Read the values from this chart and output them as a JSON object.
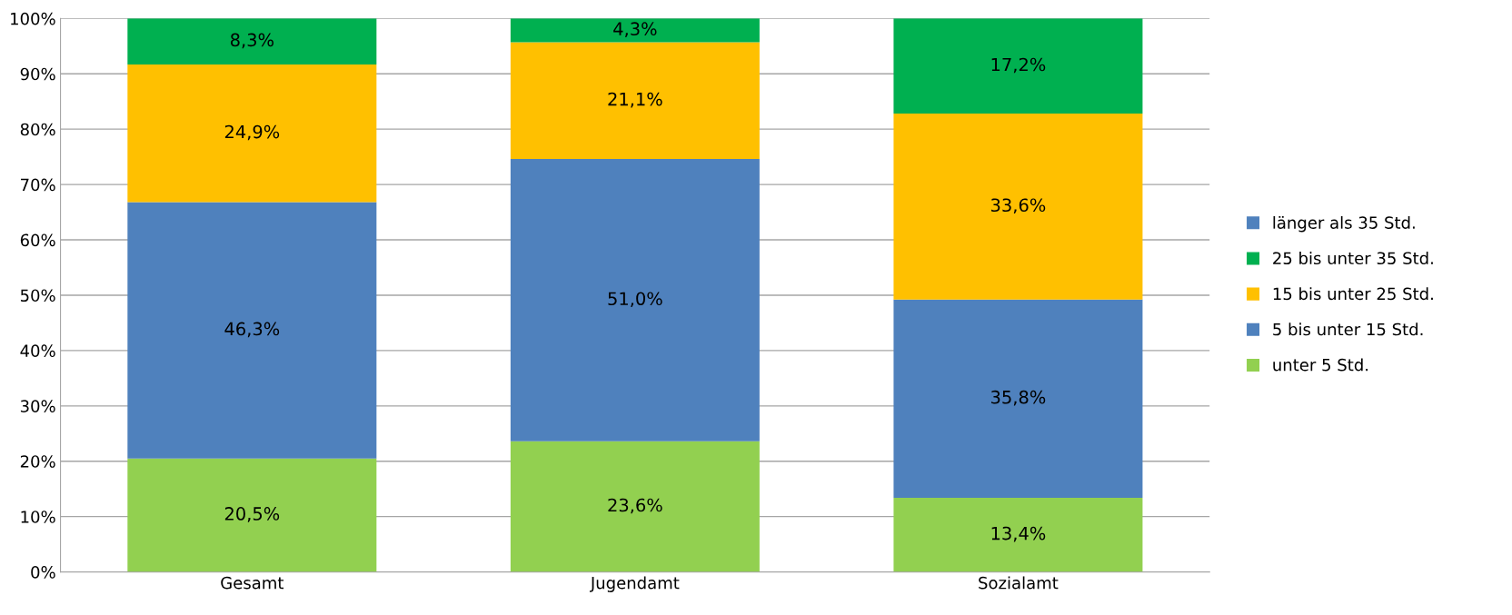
{
  "chart_data": {
    "type": "bar",
    "stacked": true,
    "categories": [
      "Gesamt",
      "Jugendamt",
      "Sozialamt"
    ],
    "series": [
      {
        "name": "unter 5 Std.",
        "color": "#92d050",
        "values": [
          20.5,
          23.6,
          13.4
        ],
        "value_labels": [
          "20,5%",
          "23,6%",
          "13,4%"
        ]
      },
      {
        "name": "5 bis unter 15 Std.",
        "color": "#4f81bd",
        "values": [
          46.3,
          51.0,
          35.8
        ],
        "value_labels": [
          "46,3%",
          "51,0%",
          "35,8%"
        ]
      },
      {
        "name": "15 bis unter 25 Std.",
        "color": "#ffc000",
        "values": [
          24.9,
          21.1,
          33.6
        ],
        "value_labels": [
          "24,9%",
          "21,1%",
          "33,6%"
        ]
      },
      {
        "name": "25 bis unter 35 Std.",
        "color": "#00b050",
        "values": [
          8.3,
          4.3,
          17.2
        ],
        "value_labels": [
          "8,3%",
          "4,3%",
          "17,2%"
        ]
      },
      {
        "name": "länger als 35 Std.",
        "color": "#4f81bd",
        "values": [
          0,
          0,
          0
        ],
        "value_labels": [
          null,
          null,
          null
        ]
      }
    ],
    "ylim": [
      0,
      100
    ],
    "yticks": [
      {
        "value": 0,
        "label": "0%"
      },
      {
        "value": 10,
        "label": "10%"
      },
      {
        "value": 20,
        "label": "20%"
      },
      {
        "value": 30,
        "label": "30%"
      },
      {
        "value": 40,
        "label": "40%"
      },
      {
        "value": 50,
        "label": "50%"
      },
      {
        "value": 60,
        "label": "60%"
      },
      {
        "value": 70,
        "label": "70%"
      },
      {
        "value": 80,
        "label": "80%"
      },
      {
        "value": 90,
        "label": "90%"
      },
      {
        "value": 100,
        "label": "100%"
      }
    ],
    "grid": "y",
    "legend": "right"
  }
}
